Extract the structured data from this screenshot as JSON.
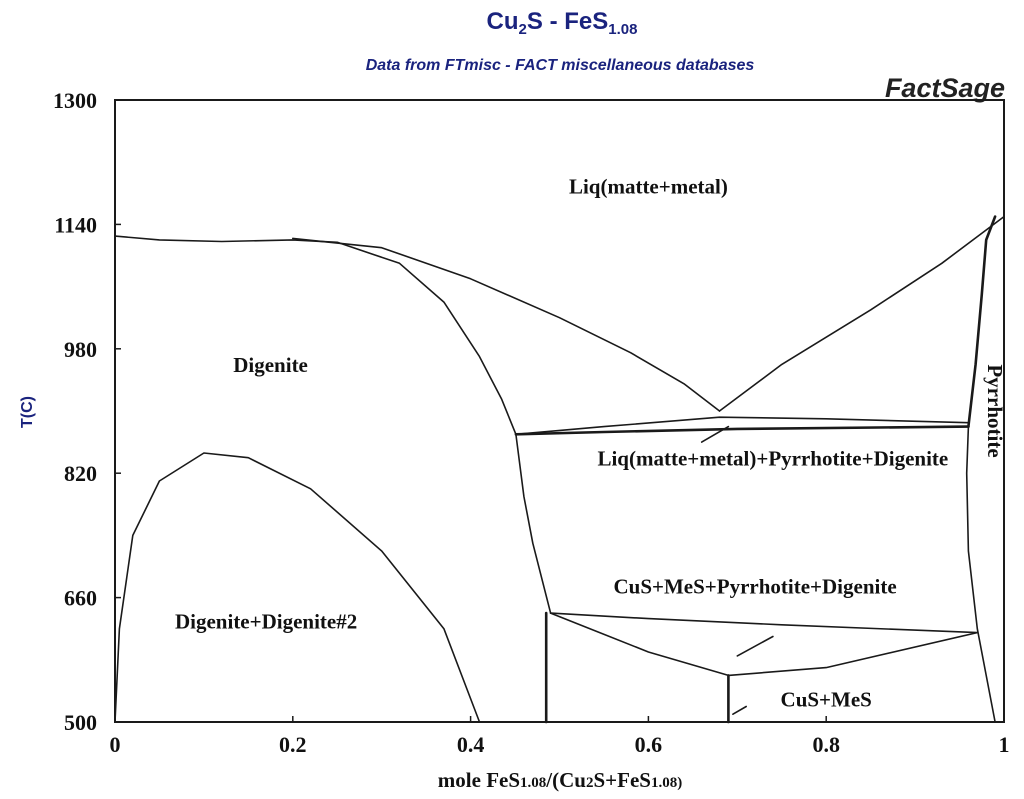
{
  "header": {
    "title_main": "Cu",
    "title_sub1": "2",
    "title_mid": "S - FeS",
    "title_sub2": "1.08",
    "subtitle": "Data from FTmisc - FACT miscellaneous databases",
    "brand": "FactSage"
  },
  "colors": {
    "title": "#1a237e",
    "subtitle": "#1a237e",
    "brand": "#222222",
    "lines": "#1a1a1a"
  },
  "chart_data": {
    "type": "line",
    "title": "Cu2S - FeS1.08",
    "xlabel": "mole FeS1.08/(Cu2S+FeS1.08)",
    "xlabel_parts": [
      "mole FeS",
      "1.08",
      "/(Cu",
      "2",
      "S+FeS",
      "1",
      ".08)"
    ],
    "ylabel": "T(C)",
    "xlim": [
      0,
      1
    ],
    "ylim": [
      500,
      1300
    ],
    "x_ticks": [
      0,
      0.2,
      0.4,
      0.6,
      0.8,
      1
    ],
    "x_tick_labels": [
      "0",
      "0.2",
      "0.4",
      "0.6",
      "0.8",
      "1"
    ],
    "y_ticks": [
      500,
      660,
      820,
      980,
      1140,
      1300
    ],
    "y_tick_labels": [
      "500",
      "660",
      "820",
      "980",
      "1140",
      "1300"
    ],
    "grid": false,
    "legend": "none",
    "phase_boundaries": [
      {
        "name": "liquidus-left",
        "points": [
          [
            0.0,
            1125
          ],
          [
            0.05,
            1120
          ],
          [
            0.12,
            1118
          ],
          [
            0.2,
            1120
          ],
          [
            0.25,
            1117
          ],
          [
            0.32,
            1090
          ],
          [
            0.37,
            1040
          ],
          [
            0.41,
            970
          ],
          [
            0.435,
            915
          ],
          [
            0.451,
            870
          ]
        ]
      },
      {
        "name": "liquidus-mid",
        "points": [
          [
            0.2,
            1122
          ],
          [
            0.3,
            1110
          ],
          [
            0.4,
            1070
          ],
          [
            0.5,
            1020
          ],
          [
            0.58,
            975
          ],
          [
            0.64,
            935
          ],
          [
            0.68,
            900
          ]
        ]
      },
      {
        "name": "liquidus-right",
        "points": [
          [
            0.68,
            900
          ],
          [
            0.75,
            960
          ],
          [
            0.85,
            1030
          ],
          [
            0.93,
            1090
          ],
          [
            1.0,
            1150
          ]
        ]
      },
      {
        "name": "digenite-solidus-left",
        "points": [
          [
            0.0,
            500
          ],
          [
            0.0,
            1125
          ]
        ]
      },
      {
        "name": "eutectic-upper",
        "points": [
          [
            0.451,
            870
          ],
          [
            0.55,
            880
          ],
          [
            0.68,
            892
          ],
          [
            0.8,
            890
          ],
          [
            0.96,
            885
          ]
        ]
      },
      {
        "name": "eutectic-lower",
        "points": [
          [
            0.451,
            870
          ],
          [
            0.55,
            873
          ],
          [
            0.7,
            877
          ],
          [
            0.96,
            880
          ]
        ]
      },
      {
        "name": "pyrrhotite-left-boundary",
        "points": [
          [
            0.96,
            880
          ],
          [
            0.958,
            820
          ],
          [
            0.96,
            720
          ],
          [
            0.97,
            620
          ],
          [
            0.98,
            560
          ],
          [
            0.99,
            500
          ]
        ]
      },
      {
        "name": "pyrrhotite-upper",
        "points": [
          [
            0.96,
            880
          ],
          [
            0.968,
            960
          ],
          [
            0.975,
            1050
          ],
          [
            0.98,
            1120
          ],
          [
            0.99,
            1150
          ]
        ]
      },
      {
        "name": "digenite-right-boundary",
        "points": [
          [
            0.451,
            870
          ],
          [
            0.46,
            790
          ],
          [
            0.47,
            730
          ],
          [
            0.49,
            640
          ]
        ]
      },
      {
        "name": "peritectic-upper",
        "points": [
          [
            0.49,
            640
          ],
          [
            0.6,
            633
          ],
          [
            0.75,
            625
          ],
          [
            0.97,
            615
          ]
        ]
      },
      {
        "name": "peritectic-lower",
        "points": [
          [
            0.49,
            640
          ],
          [
            0.6,
            590
          ],
          [
            0.69,
            560
          ],
          [
            0.8,
            570
          ],
          [
            0.97,
            615
          ]
        ]
      },
      {
        "name": "cus-mes-vertical",
        "points": [
          [
            0.69,
            560
          ],
          [
            0.69,
            500
          ]
        ]
      },
      {
        "name": "digenite-left-vertical",
        "points": [
          [
            0.485,
            640
          ],
          [
            0.485,
            500
          ]
        ]
      },
      {
        "name": "miscibility-gap",
        "points": [
          [
            0.0,
            500
          ],
          [
            0.005,
            620
          ],
          [
            0.02,
            740
          ],
          [
            0.05,
            810
          ],
          [
            0.1,
            846
          ],
          [
            0.15,
            840
          ],
          [
            0.22,
            800
          ],
          [
            0.3,
            720
          ],
          [
            0.37,
            620
          ],
          [
            0.41,
            500
          ]
        ]
      },
      {
        "name": "tie-line-liq",
        "points": [
          [
            0.66,
            860
          ],
          [
            0.69,
            880
          ]
        ]
      },
      {
        "name": "tie-line-cus",
        "points": [
          [
            0.7,
            585
          ],
          [
            0.74,
            610
          ]
        ]
      },
      {
        "name": "tie-line-cusmes",
        "points": [
          [
            0.695,
            510
          ],
          [
            0.71,
            520
          ]
        ]
      }
    ],
    "region_labels": [
      {
        "text": "Liq(matte+metal)",
        "x": 0.6,
        "y": 1180
      },
      {
        "text": "Digenite",
        "x": 0.175,
        "y": 950
      },
      {
        "text": "Liq(matte+metal)+Pyrrhotite+Digenite",
        "x": 0.74,
        "y": 830
      },
      {
        "text": "Pyrrhotite",
        "x": 0.982,
        "y": 900,
        "rotate": 90
      },
      {
        "text": "CuS+MeS+Pyrrhotite+Digenite",
        "x": 0.72,
        "y": 665
      },
      {
        "text": "Digenite+Digenite#2",
        "x": 0.17,
        "y": 620
      },
      {
        "text": "CuS+MeS",
        "x": 0.8,
        "y": 520
      }
    ]
  }
}
